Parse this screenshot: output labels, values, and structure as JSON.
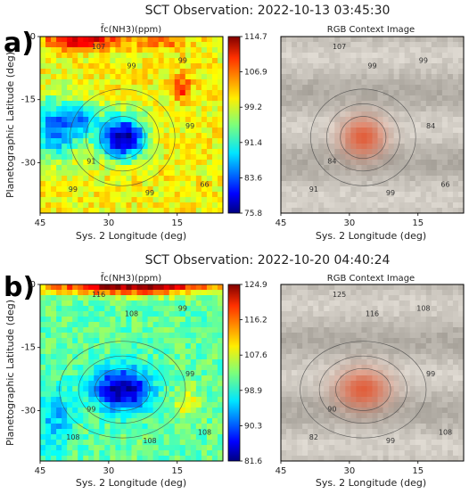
{
  "figure": {
    "panels": [
      {
        "letter": "a)",
        "title": "SCT Observation: 2022-10-13 03:45:30",
        "left_title": "f̄c(NH3)(ppm)",
        "right_title": "RGB Context Image",
        "ylabel": "Planetographic Latitude (deg)",
        "xlabel": "Sys. 2 Longitude (deg)",
        "xticks": [
          "45",
          "30",
          "15"
        ],
        "yticks": [
          "0",
          "-15",
          "-30"
        ],
        "colorbar_ticks": [
          "114.7",
          "106.9",
          "99.2",
          "91.4",
          "83.6",
          "75.8"
        ],
        "contour_labels_left": [
          "107",
          "99",
          "99",
          "99",
          "91",
          "99",
          "99",
          "66"
        ],
        "contour_labels_right": [
          "107",
          "99",
          "99",
          "84",
          "84",
          "91",
          "99",
          "66"
        ]
      },
      {
        "letter": "b)",
        "title": "SCT Observation: 2022-10-20 04:40:24",
        "left_title": "f̄c(NH3)(ppm)",
        "right_title": "RGB Context Image",
        "ylabel": "Planetographic Latitude (deg)",
        "xlabel": "Sys. 2 Longitude (deg)",
        "xticks": [
          "45",
          "30",
          "15"
        ],
        "yticks": [
          "0",
          "-15",
          "-30"
        ],
        "colorbar_ticks": [
          "124.9",
          "116.2",
          "107.6",
          "98.9",
          "90.3",
          "81.6"
        ],
        "contour_labels_left": [
          "116",
          "108",
          "99",
          "99",
          "99",
          "108",
          "108",
          "108"
        ],
        "contour_labels_right": [
          "125",
          "116",
          "108",
          "99",
          "90",
          "82",
          "99",
          "108"
        ]
      }
    ]
  },
  "chart_data": [
    {
      "type": "heatmap",
      "title": "SCT Observation: 2022-10-13 03:45:30",
      "subtitle": "f̄c(NH3)(ppm)",
      "xlabel": "Sys. 2 Longitude (deg)",
      "ylabel": "Planetographic Latitude (deg)",
      "xlim": [
        45,
        5
      ],
      "ylim": [
        -42,
        0
      ],
      "xticks": [
        45,
        30,
        15
      ],
      "yticks": [
        0,
        -15,
        -30
      ],
      "colorbar": {
        "min": 75.8,
        "max": 114.7,
        "ticks": [
          114.7,
          106.9,
          99.2,
          91.4,
          83.6,
          75.8
        ],
        "colormap": "jet"
      },
      "baseline": 100,
      "features": [
        {
          "lon": 27,
          "lat": -24,
          "value": 76,
          "radius_lon": 5,
          "radius_lat": 5
        },
        {
          "lon": 42,
          "lat": -22,
          "value": 85,
          "radius_lon": 5,
          "radius_lat": 7
        },
        {
          "lon": 36,
          "lat": -20,
          "value": 90,
          "radius_lon": 4,
          "radius_lat": 4
        },
        {
          "lon": 36,
          "lat": -1,
          "value": 112,
          "radius_lon": 8,
          "radius_lat": 2
        },
        {
          "lon": 14,
          "lat": -12,
          "value": 108,
          "radius_lon": 2,
          "radius_lat": 3
        },
        {
          "lon": 18,
          "lat": -1,
          "value": 106,
          "radius_lon": 5,
          "radius_lat": 2
        }
      ]
    },
    {
      "type": "heatmap",
      "title": "SCT Observation: 2022-10-20 04:40:24",
      "subtitle": "f̄c(NH3)(ppm)",
      "xlabel": "Sys. 2 Longitude (deg)",
      "ylabel": "Planetographic Latitude (deg)",
      "xlim": [
        45,
        5
      ],
      "ylim": [
        -42,
        0
      ],
      "xticks": [
        45,
        30,
        15
      ],
      "yticks": [
        0,
        -15,
        -30
      ],
      "colorbar": {
        "min": 81.6,
        "max": 124.9,
        "ticks": [
          124.9,
          116.2,
          107.6,
          98.9,
          90.3,
          81.6
        ],
        "colormap": "jet"
      },
      "baseline": 102,
      "features": [
        {
          "lon": 27,
          "lat": -25,
          "value": 82,
          "radius_lon": 6,
          "radius_lat": 5
        },
        {
          "lon": 25,
          "lat": -0.5,
          "value": 124,
          "radius_lon": 20,
          "radius_lat": 2
        },
        {
          "lon": 13,
          "lat": -28,
          "value": 108,
          "radius_lon": 3,
          "radius_lat": 4
        },
        {
          "lon": 42,
          "lat": -32,
          "value": 95,
          "radius_lon": 4,
          "radius_lat": 8
        }
      ]
    }
  ]
}
